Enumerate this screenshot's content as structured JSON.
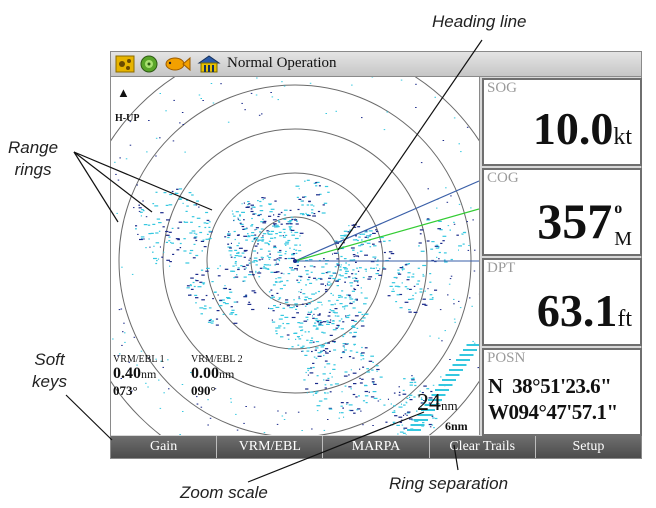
{
  "status_bar": {
    "text": "Normal Operation",
    "icons": [
      "gps-icon",
      "target-icon",
      "fish-icon",
      "home-icon"
    ]
  },
  "radar": {
    "orientation": "H-UP",
    "vrm_ebl_1": {
      "label": "VRM/EBL 1",
      "distance": "0.40",
      "unit": "nm",
      "bearing": "073°"
    },
    "vrm_ebl_2": {
      "label": "VRM/EBL 2",
      "distance": "0.00",
      "unit": "nm",
      "bearing": "090°"
    },
    "zoom_scale": {
      "value": "24",
      "unit": "nm"
    },
    "ring_separation": "6nm"
  },
  "data_fields": [
    {
      "label": "SOG",
      "value": "10.0",
      "unit": "kt"
    },
    {
      "label": "COG",
      "value": "357",
      "unit_top": "o",
      "unit_bottom": "M"
    },
    {
      "label": "DPT",
      "value": "63.1",
      "unit": "ft"
    },
    {
      "label": "POSN",
      "line1": "N  38°51'23.6\"",
      "line2": "W094°47'57.1\""
    }
  ],
  "soft_keys": [
    "Gain",
    "VRM/EBL",
    "MARPA",
    "Clear Trails",
    "Setup"
  ],
  "callouts": {
    "heading_line": "Heading line",
    "range_rings_1": "Range",
    "range_rings_2": "rings",
    "soft_keys_1": "Soft",
    "soft_keys_2": "keys",
    "zoom_scale": "Zoom scale",
    "ring_separation": "Ring separation"
  },
  "colors": {
    "echo": "#35c8e0",
    "echo_dark": "#1a2a8a",
    "course_line": "#33cc33",
    "heading_line": "#3a5fa8"
  }
}
